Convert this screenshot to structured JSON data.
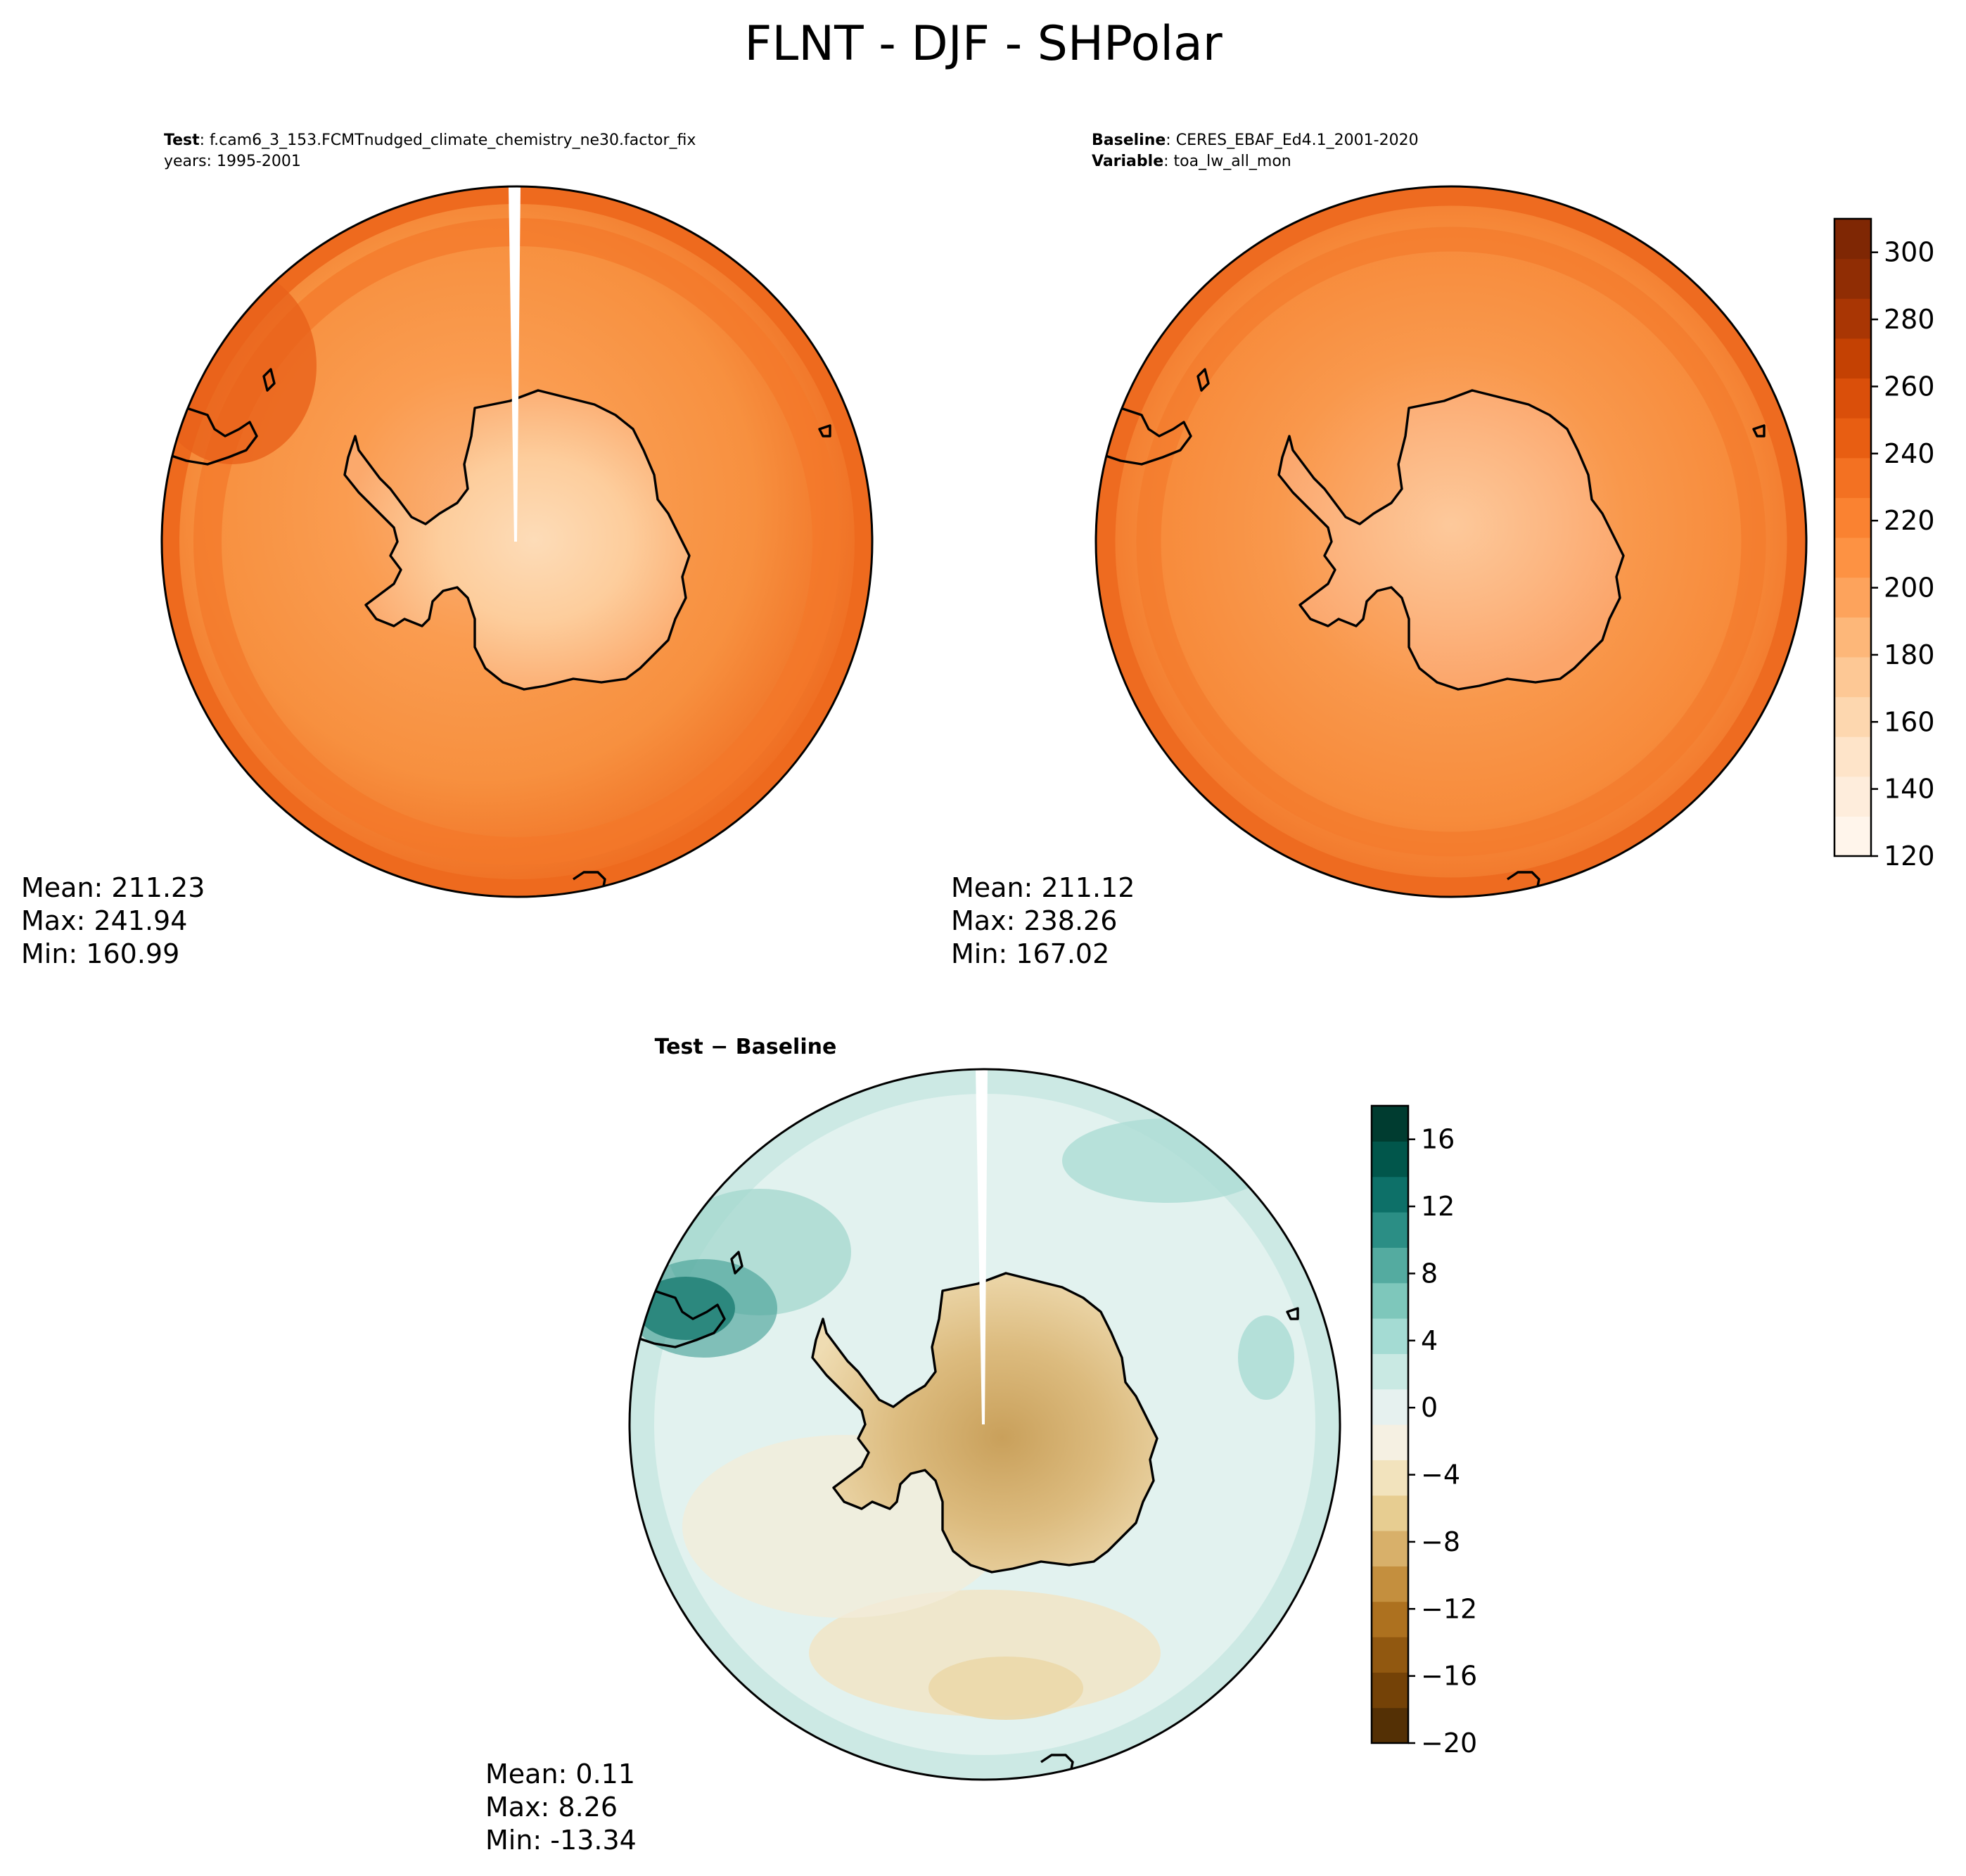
{
  "figure": {
    "title": "FLNT - DJF - SHPolar"
  },
  "panels": [
    {
      "id": "test",
      "header_bold_1": "Test",
      "header_text_1": "f.cam6_3_153.FCMTnudged_climate_chemistry_ne30.factor_fix",
      "header_bold_2": "",
      "header_text_2": "years: 1995-2001",
      "stats": {
        "mean": "Mean: 211.23",
        "max": "Max: 241.94",
        "min": "Min: 160.99"
      }
    },
    {
      "id": "baseline",
      "header_bold_1": "Baseline",
      "header_text_1": "CERES_EBAF_Ed4.1_2001-2020",
      "header_bold_2": "Variable",
      "header_text_2": "toa_lw_all_mon",
      "stats": {
        "mean": "Mean: 211.12",
        "max": "Max: 238.26",
        "min": "Min: 167.02"
      }
    },
    {
      "id": "diff",
      "title": "Test − Baseline",
      "stats": {
        "mean": "Mean:  0.11",
        "max": "Max:  8.26",
        "min": "Min: -13.34"
      }
    }
  ],
  "colorbars": {
    "main": {
      "cmap": "Oranges",
      "min": 120,
      "max": 310,
      "ticks": [
        "120",
        "140",
        "160",
        "180",
        "200",
        "220",
        "240",
        "260",
        "280",
        "300"
      ],
      "colors": [
        "#fff5eb",
        "#feeddc",
        "#fee4c9",
        "#fdd7af",
        "#fdc895",
        "#fdb779",
        "#fda35c",
        "#fd9243",
        "#fa8231",
        "#f37122",
        "#e85e12",
        "#da4f0a",
        "#c44103",
        "#a93604",
        "#902d04",
        "#7f2704"
      ]
    },
    "diff": {
      "cmap": "BrBG",
      "min": -20,
      "max": 18,
      "ticks": [
        "16",
        "12",
        "8",
        "4",
        "0",
        "−4",
        "−8",
        "−12",
        "−16",
        "−20"
      ],
      "colors": [
        "#543005",
        "#744207",
        "#915810",
        "#ad711f",
        "#c48f3e",
        "#d8b06a",
        "#e7cd91",
        "#f2e3bd",
        "#f5f0e2",
        "#e6f1ef",
        "#c9e9e3",
        "#a4dbd3",
        "#7ec7bb",
        "#54aba0",
        "#2b8e85",
        "#0d7068",
        "#01564b",
        "#003c30"
      ]
    }
  },
  "map_fill_colors": {
    "ocean_test": "#f68b3c",
    "ocean_baseline": "#f58636",
    "rim_test": "#ee6b1f",
    "rim_baseline": "#ef7025",
    "land_high": "#fdd5a9",
    "land_mid": "#fdb57b",
    "diff_ocean": "#e0f1ee",
    "diff_land": "#d8b575",
    "diff_hot": "#0f6a60"
  }
}
